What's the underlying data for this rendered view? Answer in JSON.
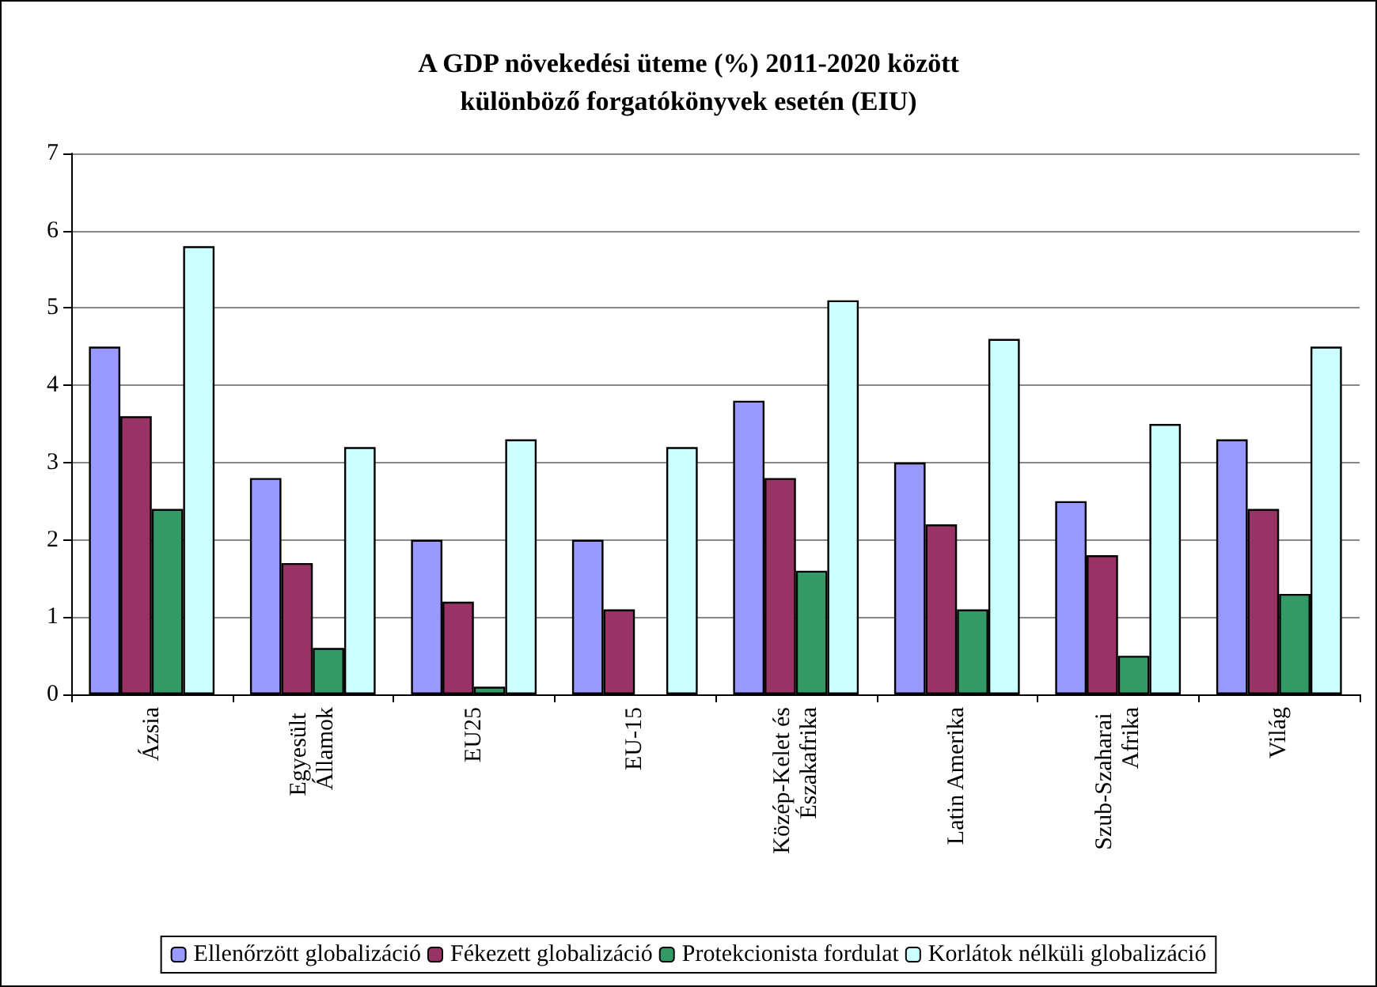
{
  "chart_data": {
    "type": "bar",
    "title": "A GDP növekedési üteme (%) 2011-2020 között\nkülönböző forgatókönyvek esetén (EIU)",
    "categories": [
      "Ázsia",
      "Egyesült Államok",
      "EU25",
      "EU-15",
      "Közép-Kelet és Északafrika",
      "Latin Amerika",
      "Szub-Szaharai Afrika",
      "Világ"
    ],
    "series": [
      {
        "name": "Ellenőrzött globalizáció",
        "color": "#9999ff",
        "values": [
          4.5,
          2.8,
          2.0,
          2.0,
          3.8,
          3.0,
          2.5,
          3.3
        ]
      },
      {
        "name": "Fékezett globalizáció",
        "color": "#993366",
        "values": [
          3.6,
          1.7,
          1.2,
          1.1,
          2.8,
          2.2,
          1.8,
          2.4
        ]
      },
      {
        "name": "Protekcionista fordulat",
        "color": "#339966",
        "values": [
          2.4,
          0.6,
          0.1,
          null,
          1.6,
          1.1,
          0.5,
          1.3
        ]
      },
      {
        "name": "Korlátok nélküli globalizáció",
        "color": "#ccffff",
        "values": [
          5.8,
          3.2,
          3.3,
          3.2,
          5.1,
          4.6,
          3.5,
          4.5
        ]
      }
    ],
    "ylim": [
      0,
      7
    ],
    "yticks": [
      0,
      1,
      2,
      3,
      4,
      5,
      6,
      7
    ],
    "grid": "y",
    "legend": "bottom"
  }
}
